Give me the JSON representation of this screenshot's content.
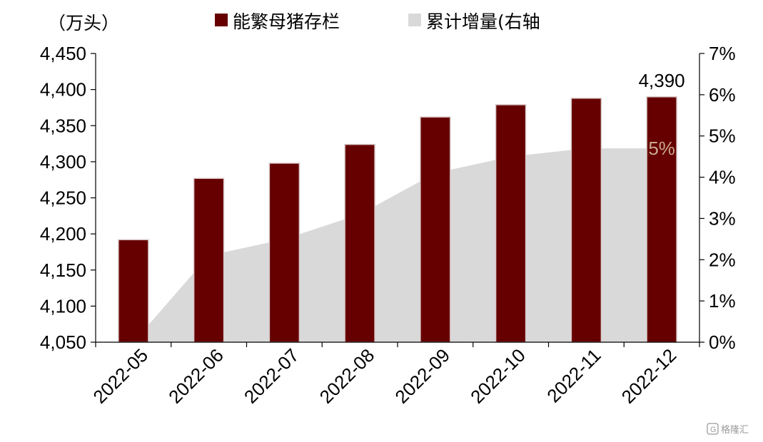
{
  "chart_data": {
    "type": "bar",
    "unit_label": "（万头）",
    "categories": [
      "2022-05",
      "2022-06",
      "2022-07",
      "2022-08",
      "2022-09",
      "2022-10",
      "2022-11",
      "2022-12"
    ],
    "series": [
      {
        "name": "能繁母猪存栏",
        "type": "bar",
        "axis": "left",
        "color": "#660000",
        "values": [
          4192,
          4277,
          4298,
          4324,
          4362,
          4379,
          4388,
          4390
        ]
      },
      {
        "name": "累计增量(右轴",
        "type": "area",
        "axis": "right",
        "color": "#d9d9d9",
        "values": [
          0.0,
          2.1,
          2.5,
          3.1,
          4.1,
          4.5,
          4.7,
          4.7
        ]
      }
    ],
    "left_axis": {
      "min": 4050,
      "max": 4450,
      "step": 50,
      "ticks": [
        "4,050",
        "4,100",
        "4,150",
        "4,200",
        "4,250",
        "4,300",
        "4,350",
        "4,400",
        "4,450"
      ]
    },
    "right_axis": {
      "min": 0,
      "max": 7,
      "step": 1,
      "ticks": [
        "0%",
        "1%",
        "2%",
        "3%",
        "4%",
        "5%",
        "6%",
        "7%"
      ]
    },
    "annotations": [
      {
        "text": "4,390",
        "category": "2022-12",
        "series": "能繁母猪存栏",
        "color": "#000000"
      },
      {
        "text": "5%",
        "category": "2022-12",
        "series": "累计增量(右轴",
        "color": "#c8a98c"
      }
    ],
    "legend_position": "top",
    "grid": false
  },
  "watermark": {
    "text": "格隆汇",
    "icon": "g-logo-icon"
  }
}
